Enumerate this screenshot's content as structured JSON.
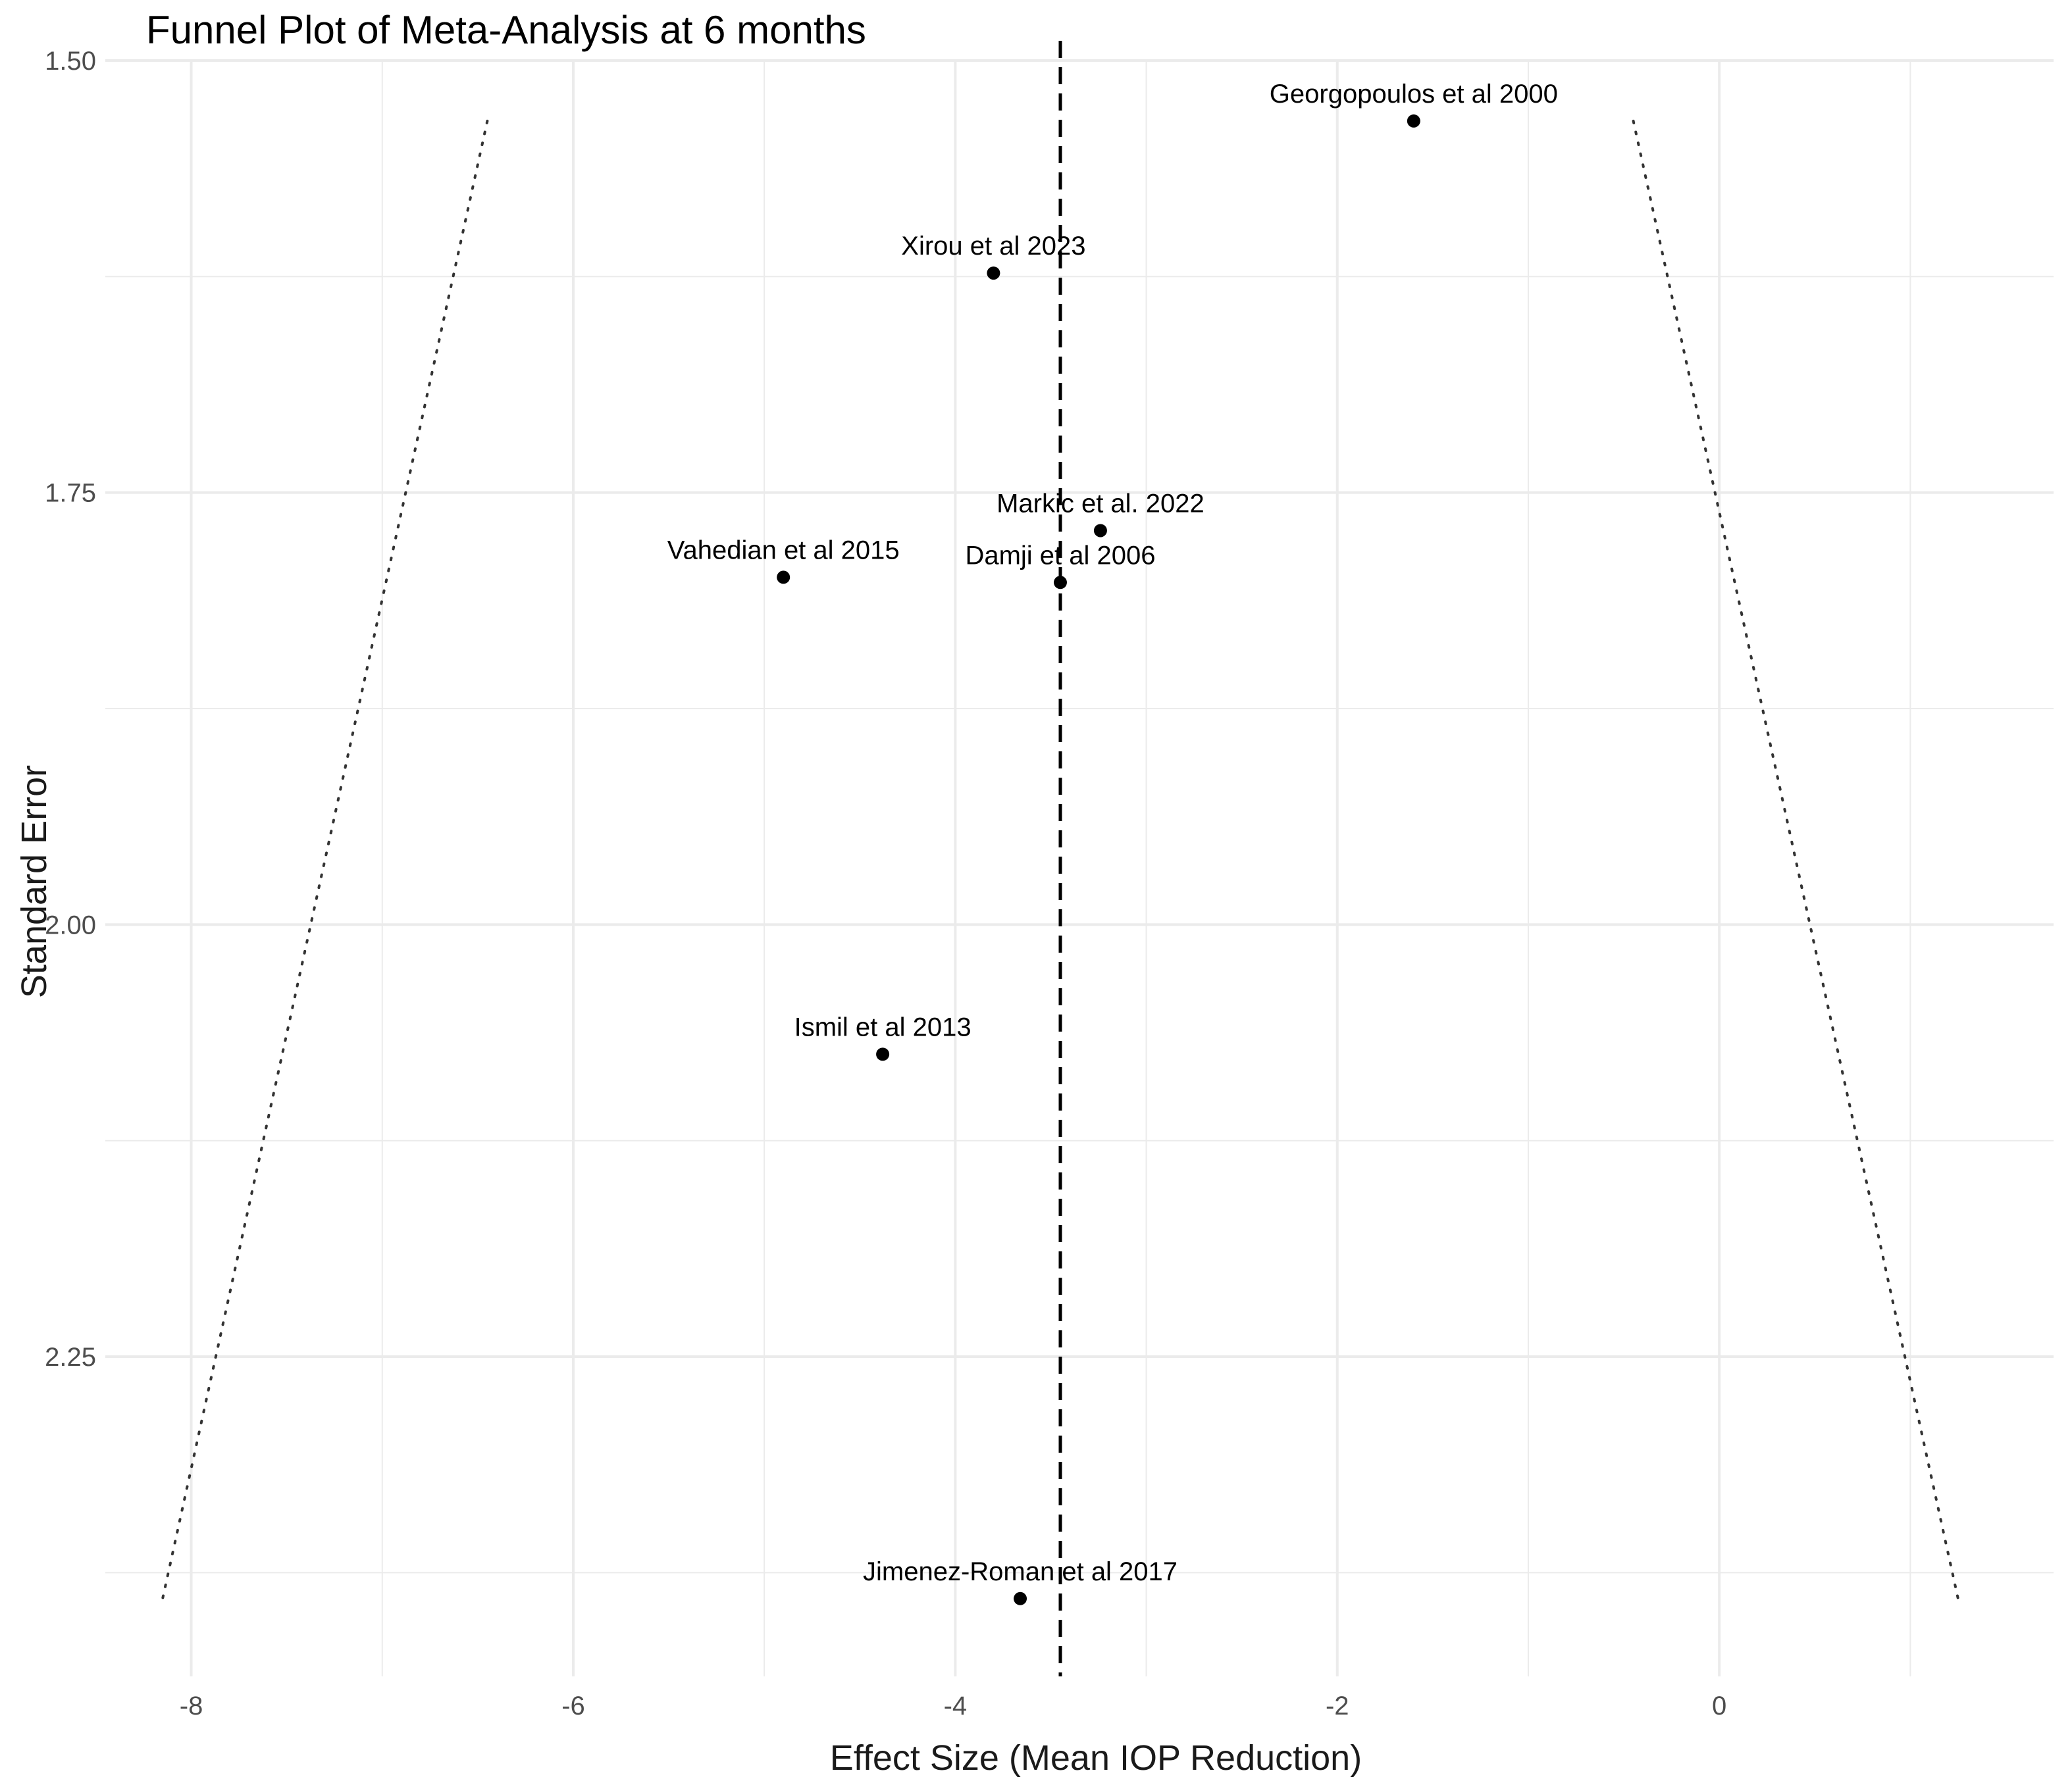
{
  "chart_data": {
    "type": "scatter",
    "title": "Funnel Plot of Meta-Analysis at 6 months",
    "xlabel": "Effect Size (Mean IOP Reduction)",
    "ylabel": "Standard Error",
    "xlim": [
      -8.45,
      1.75
    ],
    "ylim": [
      1.5,
      2.435
    ],
    "y_reversed": true,
    "x_ticks": [
      -8,
      -6,
      -4,
      -2,
      0
    ],
    "x_tick_labels": [
      "-8",
      "-6",
      "-4",
      "-2",
      "0"
    ],
    "y_ticks": [
      1.5,
      1.75,
      2.0,
      2.25
    ],
    "y_tick_labels": [
      "1.50",
      "1.75",
      "2.00",
      "2.25"
    ],
    "grid": true,
    "mean_effect": -3.45,
    "points": [
      {
        "label": "Georgopoulos et al 2000",
        "x": -1.6,
        "y": 1.535
      },
      {
        "label": "Xirou et al 2023",
        "x": -3.8,
        "y": 1.623
      },
      {
        "label": "Markic et al. 2022",
        "x": -3.24,
        "y": 1.772
      },
      {
        "label": "Vahedian et al 2015",
        "x": -4.9,
        "y": 1.799
      },
      {
        "label": "Damji et al 2006",
        "x": -3.45,
        "y": 1.802
      },
      {
        "label": "Ismil et al 2013",
        "x": -4.38,
        "y": 2.075
      },
      {
        "label": "Jimenez-Roman et al 2017",
        "x": -3.66,
        "y": 2.39
      }
    ],
    "funnel_lines": [
      {
        "x": [
          -6.45,
          -8.15
        ],
        "y": [
          1.535,
          2.39
        ]
      },
      {
        "x": [
          -0.45,
          1.25
        ],
        "y": [
          1.535,
          2.39
        ]
      }
    ]
  }
}
